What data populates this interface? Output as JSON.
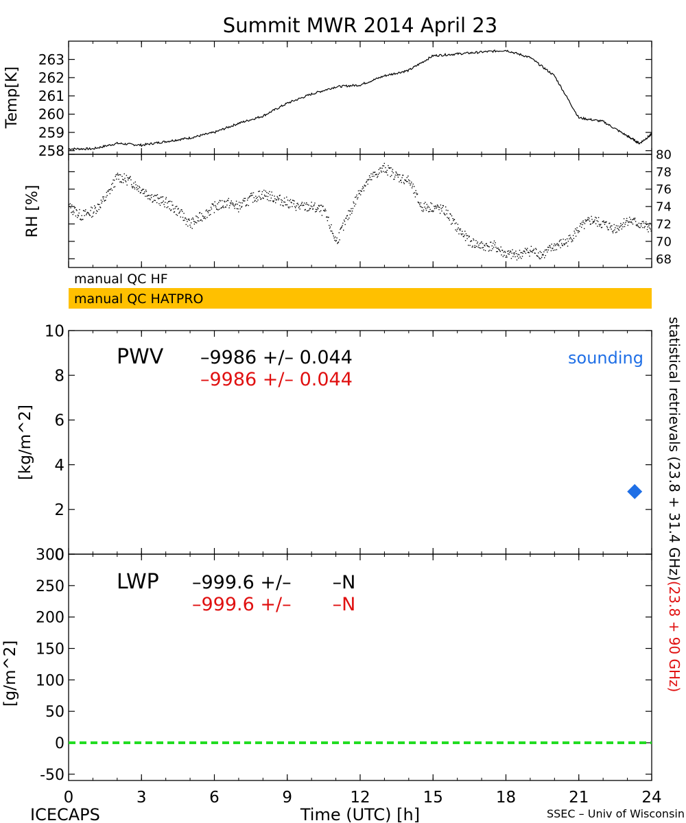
{
  "title": "Summit MWR 2014 April 23",
  "footer": {
    "left": "ICECAPS",
    "center": "Time (UTC) [h]",
    "right": "SSEC – Univ of Wisconsin"
  },
  "qc": {
    "hf": "manual QC HF",
    "hatpro": "manual QC HATPRO",
    "hatpro_color": "#ffc000"
  },
  "legend": {
    "sounding": "sounding",
    "sounding_color": "#1f6fe6"
  },
  "side_label": {
    "black": "statistical retrievals (23.8 + 31.4 GHz)",
    "red": "(23.8 + 90 GHz)"
  },
  "pwv": {
    "label": "PWV",
    "line1": "–9986 +/– 0.044",
    "line2": "–9986 +/– 0.044"
  },
  "lwp": {
    "label": "LWP",
    "line1": "–999.6 +/–       –N",
    "line2": "–999.6 +/–       –N"
  },
  "chart_data": [
    {
      "type": "line",
      "panel": "temperature",
      "ylabel": "Temp[K]",
      "ylim": [
        257.8,
        264.0
      ],
      "yticks": [
        258,
        259,
        260,
        261,
        262,
        263
      ],
      "x": [
        0,
        1,
        2,
        3,
        4,
        5,
        6,
        7,
        8,
        9,
        10,
        11,
        12,
        13,
        14,
        15,
        16,
        17,
        18,
        19,
        20,
        21,
        22,
        23,
        23.5,
        24
      ],
      "series": [
        {
          "values": [
            258.1,
            258.1,
            258.4,
            258.3,
            258.5,
            258.7,
            259.0,
            259.5,
            259.9,
            260.6,
            261.1,
            261.5,
            261.6,
            262.1,
            262.4,
            263.2,
            263.3,
            263.4,
            263.5,
            263.1,
            262.1,
            259.8,
            259.6,
            258.8,
            258.4,
            258.9
          ]
        }
      ]
    },
    {
      "type": "scatter",
      "panel": "relative_humidity",
      "ylabel": "RH [%]",
      "ylim": [
        67,
        80
      ],
      "yticks": [
        68,
        70,
        72,
        74,
        76,
        78,
        80
      ],
      "x": [
        0,
        0.5,
        1,
        1.5,
        2,
        2.5,
        3,
        3.5,
        4,
        4.5,
        5,
        5.5,
        6,
        6.5,
        7,
        7.5,
        8,
        8.5,
        9,
        9.5,
        10,
        10.5,
        11,
        11.5,
        12,
        12.5,
        13,
        13.5,
        14,
        14.5,
        15,
        15.5,
        16,
        16.5,
        17,
        17.5,
        18,
        18.5,
        19,
        19.5,
        20,
        20.5,
        21,
        21.5,
        22,
        22.5,
        23,
        23.5,
        24
      ],
      "series": [
        {
          "values": [
            74,
            73,
            73.5,
            75,
            77.5,
            77,
            76,
            75,
            74.5,
            73.5,
            72,
            73,
            74,
            74.5,
            74,
            75,
            75.5,
            75,
            74.5,
            74,
            74,
            73.5,
            70,
            73,
            76,
            77.5,
            78.5,
            77.5,
            77,
            74,
            74,
            73.5,
            71.5,
            70,
            69.5,
            69.5,
            68.5,
            68.5,
            69,
            68.5,
            69.5,
            70,
            71.5,
            72.5,
            72,
            71.5,
            72.5,
            72,
            71.5
          ]
        }
      ]
    },
    {
      "type": "scatter",
      "panel": "PWV",
      "ylabel": "[kg/m^2]",
      "ylim": [
        0,
        10
      ],
      "yticks": [
        0,
        2,
        4,
        6,
        8,
        10
      ],
      "series": [
        {
          "name": "sounding",
          "x": [
            23.3
          ],
          "values": [
            2.8
          ]
        }
      ]
    },
    {
      "type": "line",
      "panel": "LWP",
      "ylabel": "[g/m^2]",
      "ylim": [
        -60,
        300
      ],
      "yticks": [
        -50,
        0,
        50,
        100,
        150,
        200,
        250,
        300
      ],
      "series": [
        {
          "x": [
            0,
            24
          ],
          "values": [
            0,
            0
          ],
          "color": "#22dd22"
        }
      ]
    }
  ],
  "xaxis": {
    "xlim": [
      0,
      24
    ],
    "ticks": [
      0,
      3,
      6,
      9,
      12,
      15,
      18,
      21,
      24
    ]
  }
}
